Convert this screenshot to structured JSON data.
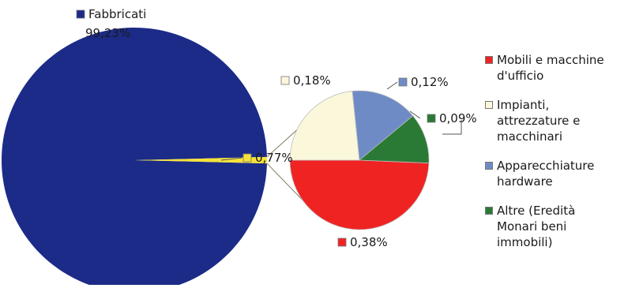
{
  "chart_data": [
    {
      "type": "pie",
      "slices": [
        {
          "label": "Fabbricati",
          "value": 99.23,
          "value_label": "99,23%",
          "color": "#1c2b87"
        },
        {
          "label": "",
          "value": 0.77,
          "value_label": "0,77%",
          "color": "#f5e23a"
        }
      ],
      "start_angle_deg": 90
    },
    {
      "type": "pie",
      "slices": [
        {
          "label": "Mobili e macchine d'ufficio",
          "value": 0.38,
          "value_label": "0,38%",
          "color": "#f02323"
        },
        {
          "label": "Impianti, attrezzature e macchinari",
          "value": 0.18,
          "value_label": "0,18%",
          "color": "#fbf7da"
        },
        {
          "label": "Apparecchiature hardware",
          "value": 0.12,
          "value_label": "0,12%",
          "color": "#6f8bc6"
        },
        {
          "label": "Altre (Eredità Monari beni immobili)",
          "value": 0.09,
          "value_label": "0,09%",
          "color": "#2a7a35"
        }
      ],
      "start_angle_deg": 0
    }
  ],
  "legend": [
    {
      "label": "Mobili e macchine\nd'ufficio",
      "color": "#f02323"
    },
    {
      "label": "Impianti,\nattrezzature e\nmacchinari",
      "color": "#fbf7da"
    },
    {
      "label": "Apparecchiature\nhardware",
      "color": "#6f8bc6"
    },
    {
      "label": "Altre (Eredità\nMonari beni\nimmobili)",
      "color": "#2a7a35"
    }
  ]
}
